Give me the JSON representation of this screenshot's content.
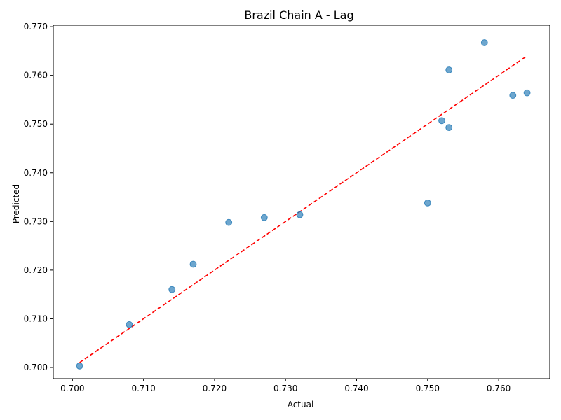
{
  "chart_data": {
    "type": "scatter",
    "title": "Brazil Chain A - Lag",
    "xlabel": "Actual",
    "ylabel": "Predicted",
    "xlim": [
      0.6973,
      0.7672
    ],
    "ylim": [
      0.6977,
      0.7703
    ],
    "xticks": [
      "0.700",
      "0.710",
      "0.720",
      "0.730",
      "0.740",
      "0.750",
      "0.760"
    ],
    "xtick_values": [
      0.7,
      0.71,
      0.72,
      0.73,
      0.74,
      0.75,
      0.76
    ],
    "yticks": [
      "0.700",
      "0.710",
      "0.720",
      "0.730",
      "0.740",
      "0.750",
      "0.760",
      "0.770"
    ],
    "ytick_values": [
      0.7,
      0.71,
      0.72,
      0.73,
      0.74,
      0.75,
      0.76,
      0.77
    ],
    "grid": false,
    "points": [
      {
        "x": 0.701,
        "y": 0.7003
      },
      {
        "x": 0.708,
        "y": 0.7088
      },
      {
        "x": 0.714,
        "y": 0.716
      },
      {
        "x": 0.717,
        "y": 0.7212
      },
      {
        "x": 0.722,
        "y": 0.7298
      },
      {
        "x": 0.727,
        "y": 0.7308
      },
      {
        "x": 0.732,
        "y": 0.7314
      },
      {
        "x": 0.75,
        "y": 0.7338
      },
      {
        "x": 0.752,
        "y": 0.7507
      },
      {
        "x": 0.753,
        "y": 0.7493
      },
      {
        "x": 0.753,
        "y": 0.7611
      },
      {
        "x": 0.758,
        "y": 0.7667
      },
      {
        "x": 0.762,
        "y": 0.7559
      },
      {
        "x": 0.764,
        "y": 0.7564
      }
    ],
    "reference_line": {
      "style": "dashed",
      "x": [
        0.701,
        0.764
      ],
      "y": [
        0.701,
        0.764
      ]
    },
    "colors": {
      "points": "#1f77b4",
      "reference_line": "#ff0000",
      "axes": "#000000"
    }
  }
}
